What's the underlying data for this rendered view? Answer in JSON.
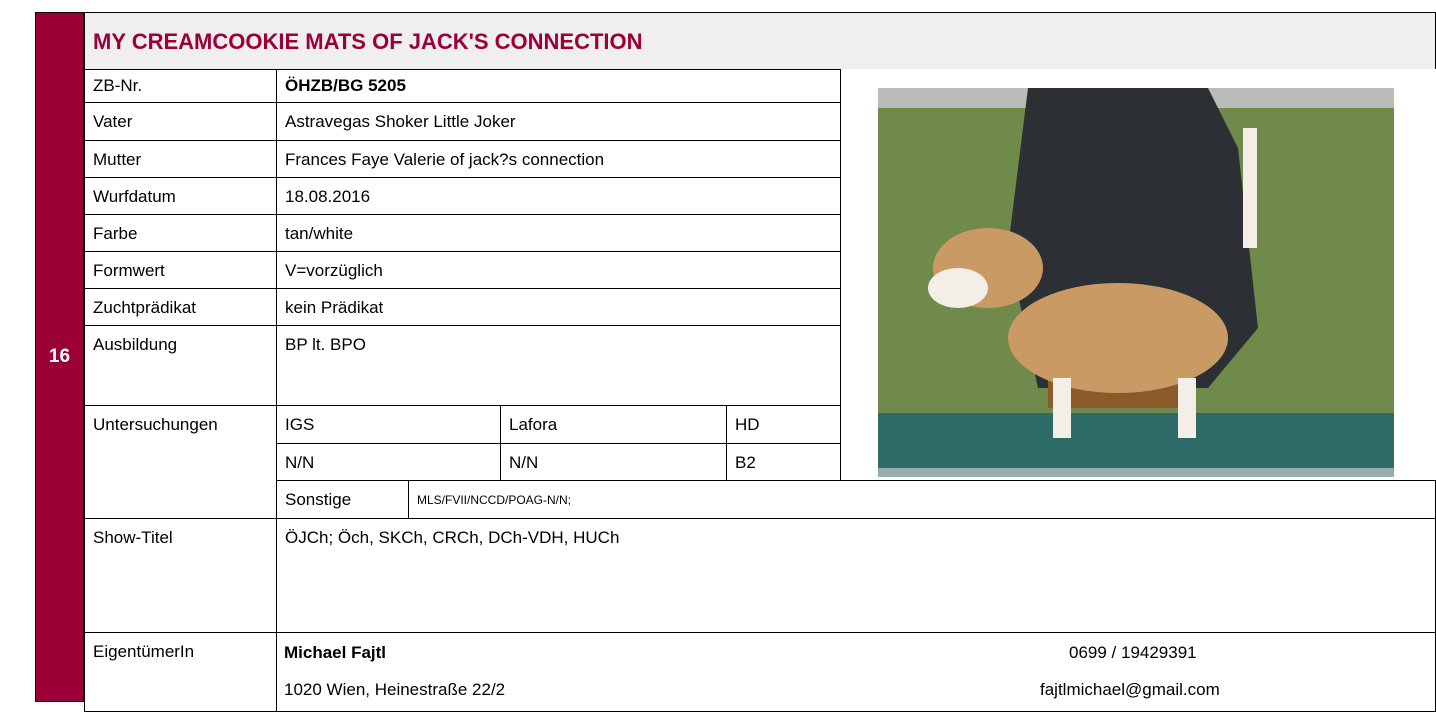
{
  "number": "16",
  "title": "MY CREAMCOOKIE MATS OF JACK'S CONNECTION",
  "rows": [
    [
      "ZB-Nr.",
      "ÖHZB/BG 5205"
    ],
    [
      "Vater",
      "Astravegas Shoker Little Joker"
    ],
    [
      "Mutter",
      "Frances Faye Valerie of jack?s connection"
    ],
    [
      "Wurfdatum",
      "18.08.2016"
    ],
    [
      "Farbe",
      "tan/white"
    ],
    [
      "Formwert",
      "V=vorzüglich"
    ],
    [
      "Zuchtprädikat",
      "kein Prädikat"
    ],
    [
      "Ausbildung",
      "BP lt. BPO"
    ]
  ],
  "tests": {
    "label": "Untersuchungen",
    "headers": [
      "IGS",
      "Lafora",
      "HD"
    ],
    "values": [
      "N/N",
      "N/N",
      "B2"
    ],
    "other_label": "Sonstige",
    "other_value": "MLS/FVII/NCCD/POAG-N/N;"
  },
  "show": {
    "label": "Show-Titel",
    "value": "ÖJCh; Öch, SKCh, CRCh, DCh-VDH, HUCh"
  },
  "owner": {
    "label": "EigentümerIn",
    "name": "Michael Fajtl",
    "phone": "0699 / 19429391",
    "address": "1020 Wien, Heinestraße 22/2",
    "email": "fajtlmichael@gmail.com"
  }
}
